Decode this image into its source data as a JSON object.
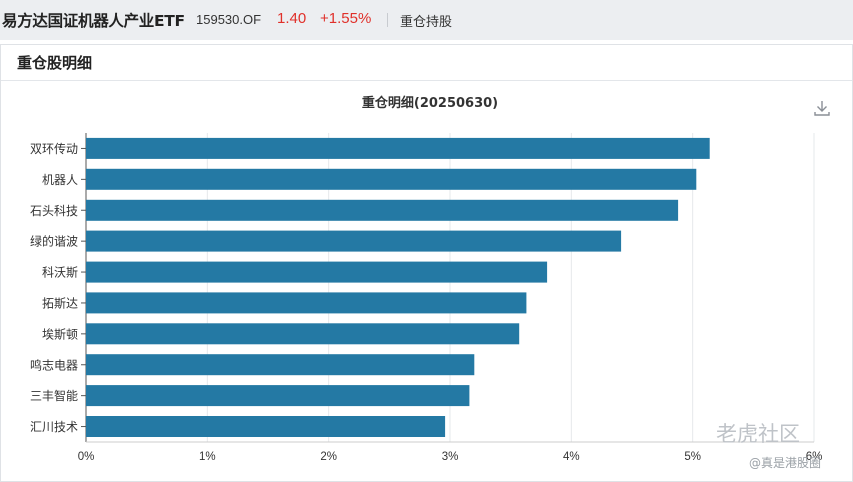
{
  "header": {
    "fund_name": "易方达国证机器人产业ETF",
    "fund_code": "159530.OF",
    "price": "1.40",
    "change_pct": "+1.55%",
    "tab_label": "重仓持股"
  },
  "panel": {
    "title": "重仓股明细"
  },
  "toolbar": {
    "download_icon": "download-icon"
  },
  "watermark": {
    "brand": "老虎社区",
    "user": "@真是港股圈"
  },
  "colors": {
    "bar": "#2479a4",
    "price_up": "#e0302a"
  },
  "chart_data": {
    "type": "bar",
    "orientation": "horizontal",
    "title": "重仓明细(20250630)",
    "categories": [
      "双环传动",
      "机器人",
      "石头科技",
      "绿的谐波",
      "科沃斯",
      "拓斯达",
      "埃斯顿",
      "鸣志电器",
      "三丰智能",
      "汇川技术"
    ],
    "values": [
      5.14,
      5.03,
      4.88,
      4.41,
      3.8,
      3.63,
      3.57,
      3.2,
      3.16,
      2.96
    ],
    "xlim": [
      0,
      6
    ],
    "xticks": [
      0,
      1,
      2,
      3,
      4,
      5,
      6
    ],
    "xtick_labels": [
      "0%",
      "1%",
      "2%",
      "3%",
      "4%",
      "5%",
      "6%"
    ],
    "grid": true,
    "legend": "none"
  }
}
